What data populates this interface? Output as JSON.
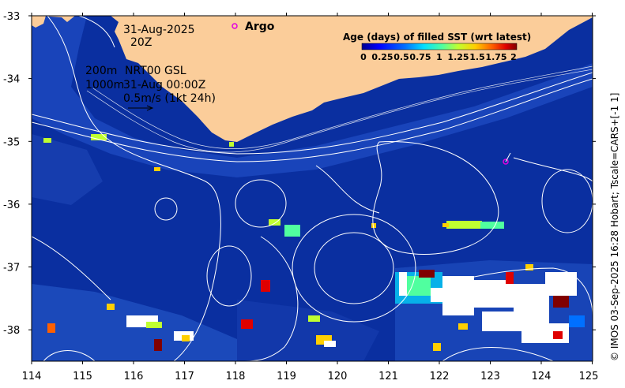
{
  "map": {
    "lon_ticks": [
      "114",
      "115",
      "116",
      "117",
      "118",
      "119",
      "120",
      "121",
      "122",
      "123",
      "124",
      "125"
    ],
    "lat_ticks": [
      "-33",
      "-34",
      "-35",
      "-36",
      "-37",
      "-38"
    ],
    "lon_range": [
      114,
      125
    ],
    "lat_range": [
      -38.5,
      -33
    ]
  },
  "annotations": {
    "date": "31-Aug-2025",
    "time": "20Z",
    "depth_200": "200m",
    "depth_1000": "1000m",
    "source": "NRT00 GSL",
    "valid_time": "31-Aug 00:00Z",
    "vector_scale": "0.5m/s (1kt 24h)"
  },
  "argo": {
    "legend_label": "Argo",
    "color": "#e000e0",
    "float_lon": 123.15,
    "float_lat": -35.33
  },
  "colorbar": {
    "title": "Age (days) of filled SST (wrt latest)",
    "tick_labels": [
      "0",
      "0.25",
      "0.5",
      "0.75",
      "1",
      "1.25",
      "1.5",
      "1.75",
      "2"
    ],
    "colors": [
      "#00008f",
      "#0000ff",
      "#0070ff",
      "#00dfff",
      "#50ff9f",
      "#bfff30",
      "#ffcf00",
      "#ff6000",
      "#df0000",
      "#800000"
    ]
  },
  "colors": {
    "ocean": "#0a2fa0",
    "ocean_light": "#2a5fd0",
    "land": "#fbcd9a",
    "contour": "#ffffff",
    "cloud": "#ffffff"
  },
  "credit": "© IMOS 03-Sep-2025 16:28 Hobart; Tscale=CARS+[-1 1]"
}
